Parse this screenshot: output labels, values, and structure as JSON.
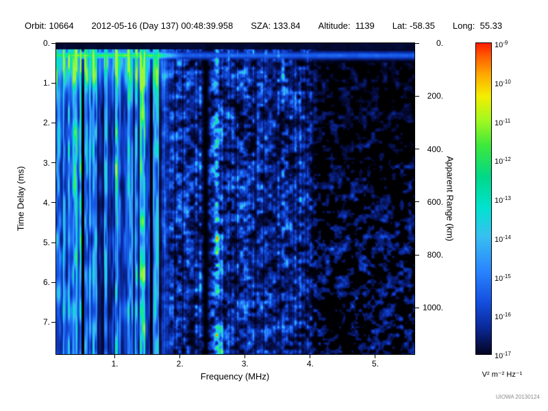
{
  "header": {
    "items": [
      {
        "text": "Orbit: 10664"
      },
      {
        "text": "2012-05-16 (Day 137) 00:48:39.958"
      },
      {
        "text": "SZA: 133.84"
      },
      {
        "text": "Altitude:  1139"
      },
      {
        "text": "Lat: -58.35"
      },
      {
        "text": "Long:  55.33"
      }
    ]
  },
  "watermark": "UIOWA 20130124",
  "chart_data": {
    "type": "heatmap",
    "title": "",
    "xlabel": "Frequency (MHz)",
    "ylabel_left": "Time Delay (ms)",
    "ylabel_right": "Apparent Range (km)",
    "x_range_mhz": [
      0.1,
      5.6
    ],
    "y_range_ms": [
      0,
      7.8
    ],
    "y_range_km": [
      0,
      1175
    ],
    "x_ticks": [
      {
        "v": 1,
        "label": "1."
      },
      {
        "v": 2,
        "label": "2."
      },
      {
        "v": 3,
        "label": "3."
      },
      {
        "v": 4,
        "label": "4."
      },
      {
        "v": 5,
        "label": "5."
      }
    ],
    "y_ticks_ms": [
      {
        "v": 0,
        "label": "0."
      },
      {
        "v": 1,
        "label": "1."
      },
      {
        "v": 2,
        "label": "2."
      },
      {
        "v": 3,
        "label": "3."
      },
      {
        "v": 4,
        "label": "4."
      },
      {
        "v": 5,
        "label": "5."
      },
      {
        "v": 6,
        "label": "6."
      },
      {
        "v": 7,
        "label": "7."
      }
    ],
    "y_ticks_km": [
      {
        "v": 0,
        "label": "0."
      },
      {
        "v": 200,
        "label": "200."
      },
      {
        "v": 400,
        "label": "400."
      },
      {
        "v": 600,
        "label": "600."
      },
      {
        "v": 800,
        "label": "800."
      },
      {
        "v": 1000,
        "label": "1000."
      }
    ],
    "colorbar": {
      "unit": "V² m⁻² Hz⁻¹",
      "scale_top": "1e-9",
      "scale_bottom": "1e-17",
      "exponents": [
        "-9",
        "-10",
        "-11",
        "-12",
        "-13",
        "-14",
        "-15",
        "-16",
        "-17"
      ],
      "gradient": [
        {
          "pos": 0,
          "color": "#ff1c00"
        },
        {
          "pos": 4,
          "color": "#ff5a00"
        },
        {
          "pos": 10,
          "color": "#ffa800"
        },
        {
          "pos": 17,
          "color": "#f4ee00"
        },
        {
          "pos": 25,
          "color": "#a0f820"
        },
        {
          "pos": 33,
          "color": "#3ce83c"
        },
        {
          "pos": 43,
          "color": "#00d888"
        },
        {
          "pos": 53,
          "color": "#00e2d0"
        },
        {
          "pos": 62,
          "color": "#38c0f0"
        },
        {
          "pos": 73,
          "color": "#2a86ff"
        },
        {
          "pos": 83,
          "color": "#1450e0"
        },
        {
          "pos": 91,
          "color": "#0b2a9e"
        },
        {
          "pos": 97,
          "color": "#06104a"
        },
        {
          "pos": 100,
          "color": "#030522"
        }
      ]
    },
    "features": [
      {
        "name": "ionospheric-vertical-striations",
        "freq_mhz": [
          0.1,
          1.65
        ],
        "delay_ms": [
          0.2,
          7.8
        ],
        "note": "dense bright cyan/green vertical stripes across full delay range"
      },
      {
        "name": "surface-echo-band",
        "freq_mhz": [
          0.1,
          5.6
        ],
        "delay_ms": [
          0.18,
          0.45
        ],
        "note": "horizontal band, green/strong below ~2 MHz, dim blue toward 5.5 MHz"
      },
      {
        "name": "dark-frequency-gap",
        "freq_mhz": [
          2.3,
          2.46
        ],
        "note": "vertical dark notch"
      },
      {
        "name": "bright-column",
        "freq_mhz": [
          2.48,
          2.64
        ],
        "note": "column of brighter cyan speckle"
      },
      {
        "name": "diffuse-blue-speckle",
        "freq_mhz": [
          1.7,
          3.95
        ],
        "note": "moderate blue noise field"
      },
      {
        "name": "sparse-right-field",
        "freq_mhz": [
          3.95,
          5.6
        ],
        "note": "darker, patchy blue blobs, denser at larger delays"
      }
    ],
    "render": {
      "seed": 1337,
      "striations_fade_mhz": [
        1.62,
        1.95
      ],
      "striation_top_boost": {
        "delay_ms": 0.5,
        "sigma_ms": 0.6,
        "amp": 0.3
      },
      "mid_amp": 0.74,
      "sparse_from_mhz": [
        3.9,
        4.15
      ],
      "sparse_amp": 0.62,
      "band": {
        "delay_ms": 0.3,
        "sigma_ms": 0.12,
        "strong_amp": 0.92,
        "weak_amp": 0.5,
        "strong_below_mhz": [
          1.55,
          2.1
        ]
      },
      "top_dark_below_ms": 0.15,
      "dark_gap_mhz": {
        "center": 2.385,
        "sigma": 0.05,
        "depth": 0.9
      },
      "bright_column_mhz": {
        "center": 2.56,
        "sigma": 0.07,
        "gain": 0.65
      },
      "colormap": [
        {
          "t": 0.0,
          "c": "#000000"
        },
        {
          "t": 0.08,
          "c": "#020318"
        },
        {
          "t": 0.16,
          "c": "#06104a"
        },
        {
          "t": 0.28,
          "c": "#0b2a9e"
        },
        {
          "t": 0.4,
          "c": "#1450e0"
        },
        {
          "t": 0.52,
          "c": "#2a86ff"
        },
        {
          "t": 0.62,
          "c": "#38c0f0"
        },
        {
          "t": 0.72,
          "c": "#00e2d0"
        },
        {
          "t": 0.82,
          "c": "#2cf060"
        },
        {
          "t": 0.9,
          "c": "#c8f82c"
        },
        {
          "t": 0.96,
          "c": "#ffb000"
        },
        {
          "t": 1.0,
          "c": "#ff1c00"
        }
      ]
    }
  }
}
